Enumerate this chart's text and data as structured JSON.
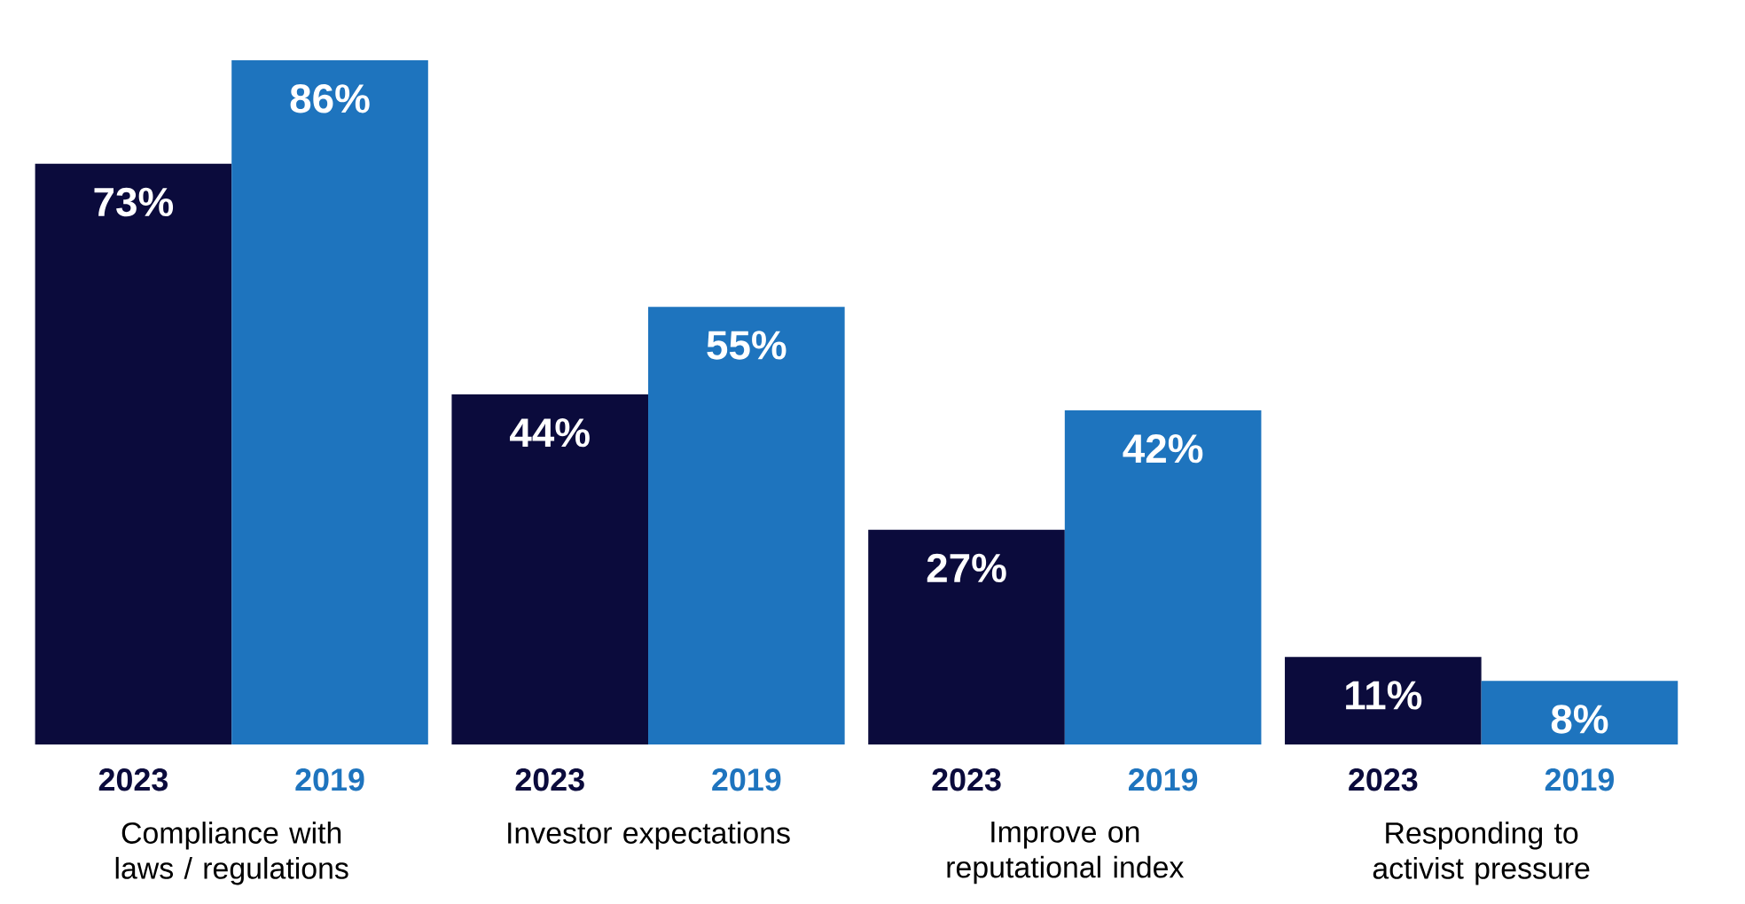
{
  "chart_data": {
    "type": "bar",
    "categories": [
      "Compliance with laws / regulations",
      "Investor expectations",
      "Improve on reputational index",
      "Responding to activist pressure"
    ],
    "series": [
      {
        "name": "2023",
        "color": "#0b0b3c",
        "values": [
          73,
          44,
          27,
          11
        ],
        "value_labels": [
          "73%",
          "44%",
          "27%",
          "11%"
        ]
      },
      {
        "name": "2019",
        "color": "#1e74be",
        "values": [
          86,
          55,
          42,
          8
        ],
        "value_labels": [
          "86%",
          "55%",
          "42%",
          "8%"
        ]
      }
    ],
    "legend": false
  }
}
